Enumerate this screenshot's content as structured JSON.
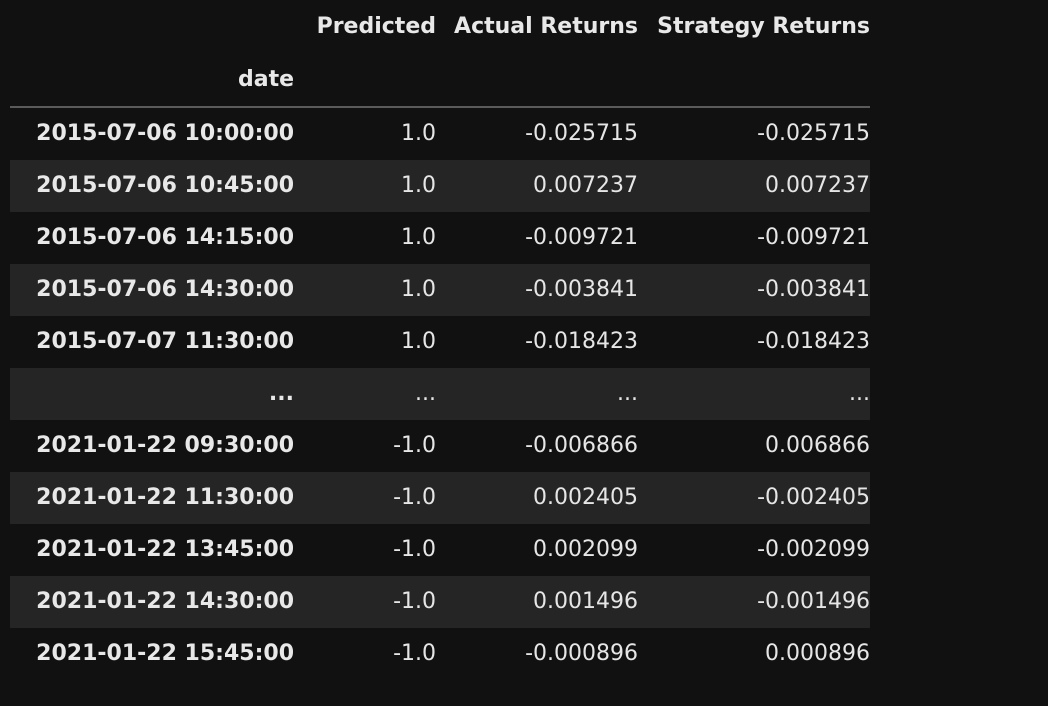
{
  "table": {
    "columns": [
      "Predicted",
      "Actual Returns",
      "Strategy Returns"
    ],
    "index_name": "date",
    "rows": [
      {
        "date": "2015-07-06 10:00:00",
        "predicted": "1.0",
        "actual": "-0.025715",
        "strategy": "-0.025715"
      },
      {
        "date": "2015-07-06 10:45:00",
        "predicted": "1.0",
        "actual": "0.007237",
        "strategy": "0.007237"
      },
      {
        "date": "2015-07-06 14:15:00",
        "predicted": "1.0",
        "actual": "-0.009721",
        "strategy": "-0.009721"
      },
      {
        "date": "2015-07-06 14:30:00",
        "predicted": "1.0",
        "actual": "-0.003841",
        "strategy": "-0.003841"
      },
      {
        "date": "2015-07-07 11:30:00",
        "predicted": "1.0",
        "actual": "-0.018423",
        "strategy": "-0.018423"
      },
      {
        "date": "...",
        "predicted": "...",
        "actual": "...",
        "strategy": "..."
      },
      {
        "date": "2021-01-22 09:30:00",
        "predicted": "-1.0",
        "actual": "-0.006866",
        "strategy": "0.006866"
      },
      {
        "date": "2021-01-22 11:30:00",
        "predicted": "-1.0",
        "actual": "0.002405",
        "strategy": "-0.002405"
      },
      {
        "date": "2021-01-22 13:45:00",
        "predicted": "-1.0",
        "actual": "0.002099",
        "strategy": "-0.002099"
      },
      {
        "date": "2021-01-22 14:30:00",
        "predicted": "-1.0",
        "actual": "0.001496",
        "strategy": "-0.001496"
      },
      {
        "date": "2021-01-22 15:45:00",
        "predicted": "-1.0",
        "actual": "-0.000896",
        "strategy": "0.000896"
      }
    ]
  }
}
